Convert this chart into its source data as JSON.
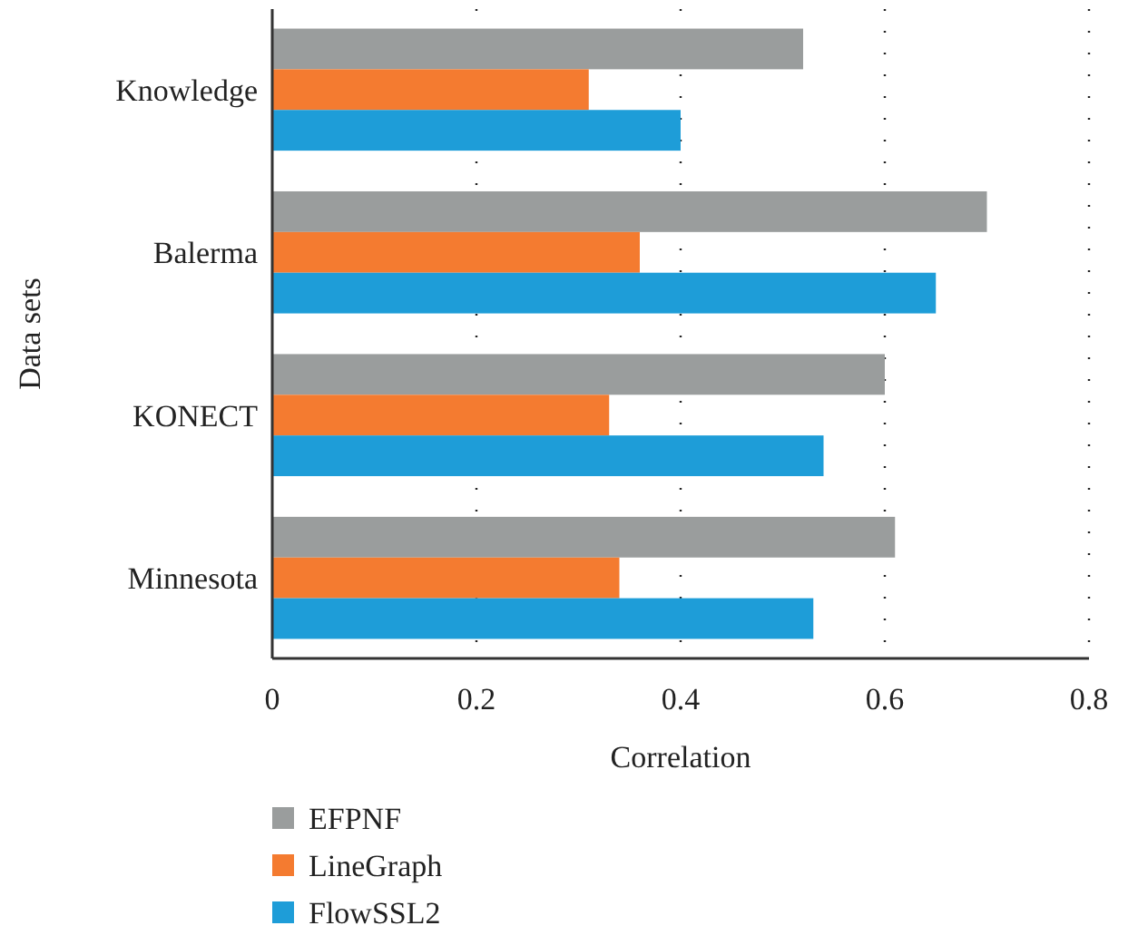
{
  "chart_data": {
    "type": "bar",
    "orientation": "horizontal",
    "xlabel": "Correlation",
    "ylabel": "Data sets",
    "categories": [
      "Knowledge",
      "Balerma",
      "KONECT",
      "Minnesota"
    ],
    "series": [
      {
        "name": "EFPNF",
        "color": "#9a9d9d",
        "values": [
          0.52,
          0.7,
          0.6,
          0.61
        ]
      },
      {
        "name": "LineGraph",
        "color": "#f47b30",
        "values": [
          0.31,
          0.36,
          0.33,
          0.34
        ]
      },
      {
        "name": "FlowSSL2",
        "color": "#1e9dd8",
        "values": [
          0.4,
          0.65,
          0.54,
          0.53
        ]
      }
    ],
    "xlim": [
      0,
      0.8
    ],
    "xticks": [
      0,
      0.2,
      0.4,
      0.6,
      0.8
    ],
    "grid": "x",
    "legend": "bottom"
  }
}
